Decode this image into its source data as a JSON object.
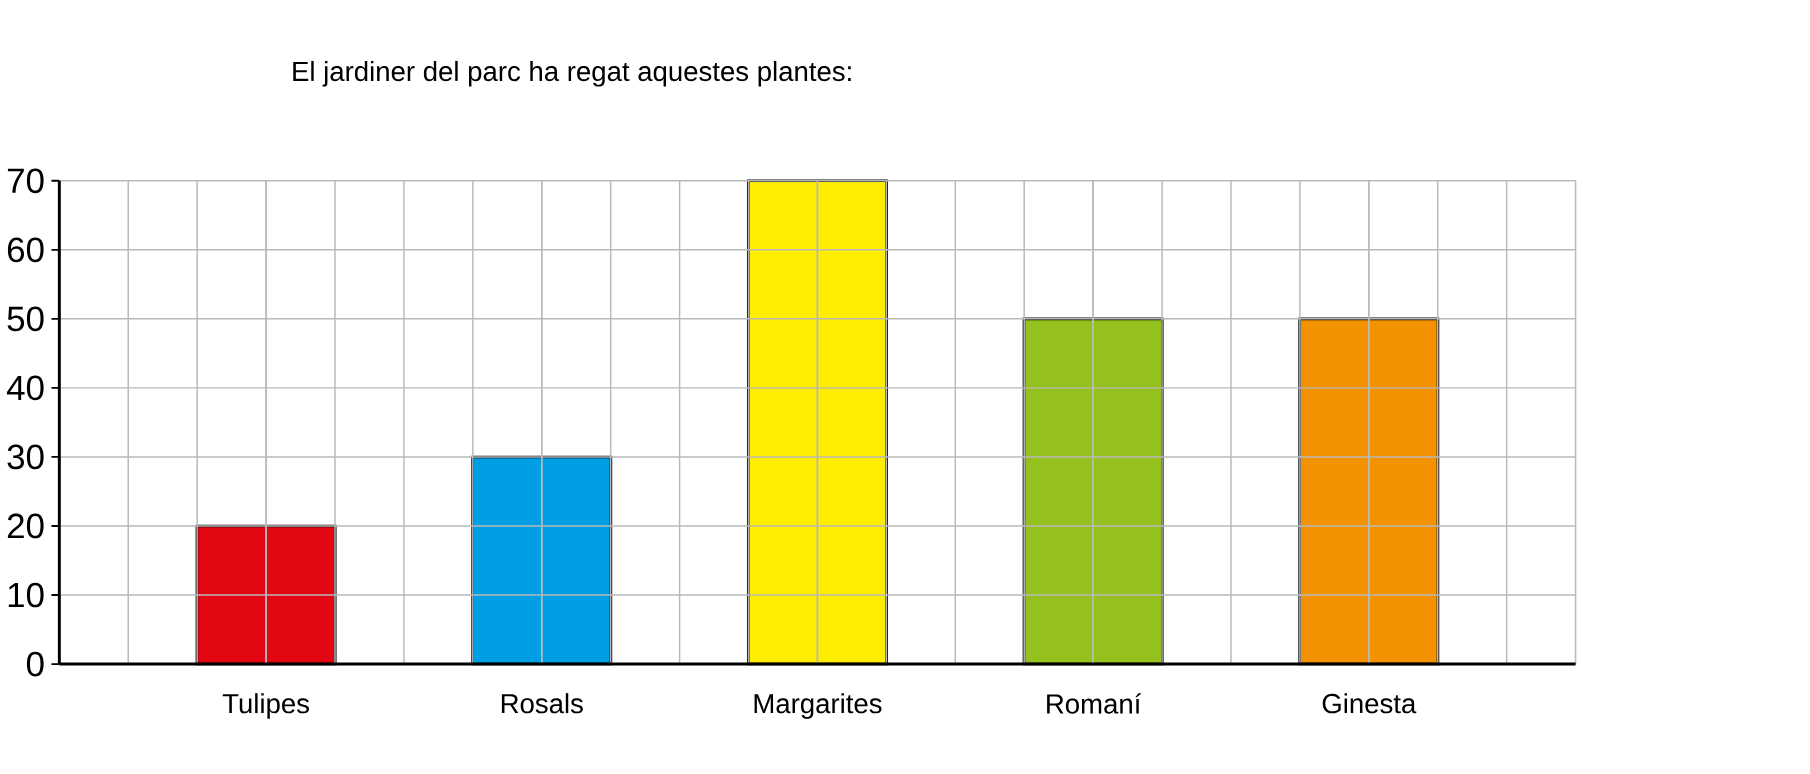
{
  "chart_data": {
    "type": "bar",
    "title": "El jardiner del parc ha regat aquestes plantes:",
    "categories": [
      "Tulipes",
      "Rosals",
      "Margarites",
      "Romaní",
      "Ginesta"
    ],
    "values": [
      20,
      30,
      70,
      50,
      50
    ],
    "colors": [
      "#e30613",
      "#009fe3",
      "#ffed00",
      "#95c11f",
      "#f39200"
    ],
    "ylim": [
      0,
      70
    ],
    "yticks": [
      0,
      10,
      20,
      30,
      40,
      50,
      60,
      70
    ],
    "grid": true
  }
}
